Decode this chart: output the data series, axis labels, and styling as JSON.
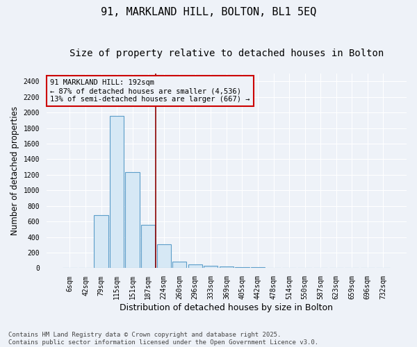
{
  "title_line1": "91, MARKLAND HILL, BOLTON, BL1 5EQ",
  "title_line2": "Size of property relative to detached houses in Bolton",
  "xlabel": "Distribution of detached houses by size in Bolton",
  "ylabel": "Number of detached properties",
  "annotation_line1": "91 MARKLAND HILL: 192sqm",
  "annotation_line2": "← 87% of detached houses are smaller (4,536)",
  "annotation_line3": "13% of semi-detached houses are larger (667) →",
  "footnote": "Contains HM Land Registry data © Crown copyright and database right 2025.\nContains public sector information licensed under the Open Government Licence v3.0.",
  "bin_labels": [
    "6sqm",
    "42sqm",
    "79sqm",
    "115sqm",
    "151sqm",
    "187sqm",
    "224sqm",
    "260sqm",
    "296sqm",
    "333sqm",
    "369sqm",
    "405sqm",
    "442sqm",
    "478sqm",
    "514sqm",
    "550sqm",
    "587sqm",
    "623sqm",
    "659sqm",
    "696sqm",
    "732sqm"
  ],
  "bar_heights": [
    5,
    8,
    680,
    1960,
    1230,
    560,
    310,
    88,
    45,
    30,
    22,
    15,
    10,
    7,
    5,
    3,
    2,
    1,
    1,
    1,
    0
  ],
  "bar_color": "#d6e8f5",
  "bar_edgecolor": "#5b9dc9",
  "vline_x": 5.5,
  "vline_color": "#8b0000",
  "ylim": [
    0,
    2500
  ],
  "yticks": [
    0,
    200,
    400,
    600,
    800,
    1000,
    1200,
    1400,
    1600,
    1800,
    2000,
    2200,
    2400
  ],
  "annotation_box_edgecolor": "#cc0000",
  "background_color": "#eef2f8",
  "grid_color": "#ffffff",
  "plot_area_color": "#eef2f8",
  "title_fontsize": 11,
  "subtitle_fontsize": 10,
  "axis_label_fontsize": 8.5,
  "tick_fontsize": 7,
  "annotation_fontsize": 7.5,
  "footnote_fontsize": 6.5
}
